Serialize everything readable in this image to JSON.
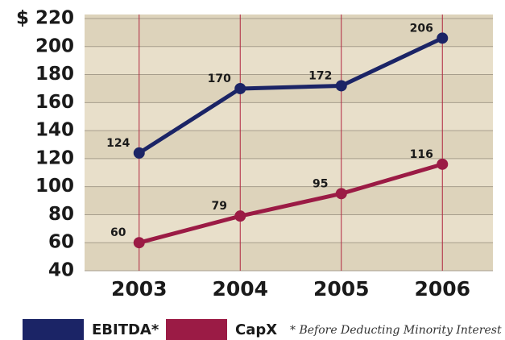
{
  "chart_data": {
    "type": "line",
    "categories": [
      "2003",
      "2004",
      "2005",
      "2006"
    ],
    "series": [
      {
        "name": "EBITDA*",
        "color": "#1b2466",
        "values": [
          124,
          170,
          172,
          206
        ]
      },
      {
        "name": "CapX",
        "color": "#9b1b45",
        "values": [
          60,
          79,
          95,
          116
        ]
      }
    ],
    "ylim": [
      40,
      220
    ],
    "yticks": [
      40,
      60,
      80,
      100,
      120,
      140,
      160,
      180,
      200,
      {
        "value": 220,
        "label": "$ 220"
      }
    ],
    "grid": true,
    "legend": "bottom",
    "note": "* Before Deducting Minority Interest"
  }
}
